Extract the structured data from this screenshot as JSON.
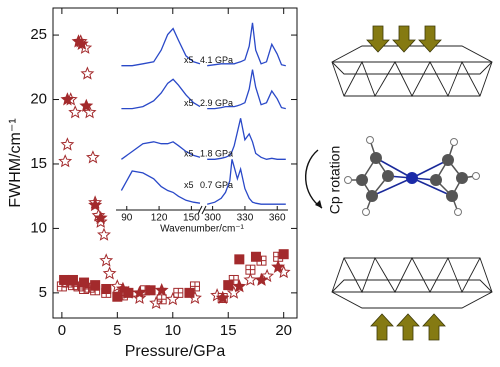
{
  "chart_data": [
    {
      "type": "scatter",
      "xlabel": "Pressure/GPa",
      "ylabel": "FWHM/cm⁻¹",
      "xlim": [
        -0.8,
        21.2
      ],
      "xticks": [
        0,
        5,
        10,
        15,
        20
      ],
      "ylim": [
        3.05,
        27.1
      ],
      "yticks": [
        5,
        10,
        15,
        20,
        25
      ],
      "series": [
        {
          "marker": "open-star",
          "color": "#a32a2c",
          "x": [
            0.3,
            0.5,
            0.8,
            1.2,
            1.7,
            2.1,
            2.3,
            2.5,
            2.8,
            3,
            3.3,
            3.5,
            3.8,
            4,
            4.3,
            5,
            6,
            7,
            8.5,
            10,
            12,
            14,
            15.5,
            17,
            18.5,
            20
          ],
          "values": [
            15.2,
            16.5,
            20,
            19,
            24.5,
            24,
            22,
            19,
            15.5,
            12,
            11,
            10.5,
            9.5,
            7.5,
            6.5,
            5.5,
            5,
            4.6,
            4.2,
            4.5,
            4.6,
            4.8,
            5,
            6,
            6.3,
            6.6
          ]
        },
        {
          "marker": "filled-star",
          "color": "#a32a2c",
          "x": [
            0.5,
            1.5,
            1.8,
            2.2,
            3,
            3.5,
            5.5,
            7,
            9,
            14.5,
            16,
            18,
            19.5
          ],
          "values": [
            20,
            24.5,
            24.3,
            19.5,
            11.8,
            10.8,
            5.3,
            5,
            5.2,
            4.6,
            5.5,
            6,
            7
          ]
        },
        {
          "marker": "open-crossed-square",
          "color": "#a32a2c",
          "x": [
            0,
            0.5,
            1,
            1.5,
            2,
            2.5,
            3,
            4,
            5.5,
            7.5,
            9,
            10.5,
            12,
            14.5,
            15.5,
            17,
            18,
            19.5
          ],
          "values": [
            5.5,
            5.8,
            5.6,
            5.5,
            5.3,
            5.4,
            5.2,
            5,
            4.8,
            5.2,
            4.5,
            5,
            5.5,
            4.6,
            6,
            6.8,
            7.5,
            7.8
          ]
        },
        {
          "marker": "filled-square",
          "color": "#a32a2c",
          "x": [
            0.2,
            1,
            2,
            3,
            4,
            5,
            6,
            8,
            11.5,
            15,
            16,
            17.5,
            20
          ],
          "values": [
            6,
            6,
            5.8,
            5.6,
            5.3,
            4.7,
            5,
            5.2,
            5,
            5.6,
            7.6,
            7.8,
            8
          ]
        }
      ]
    },
    {
      "type": "line",
      "xlabel": "Wavenumber/cm⁻¹",
      "annotation": "x5",
      "xlim": [
        80,
        370
      ],
      "axis_break": [
        158,
        292
      ],
      "xticks": [
        90,
        120,
        150,
        300,
        330,
        360
      ],
      "ylim": [
        0,
        10
      ],
      "x": [
        85,
        95,
        105,
        115,
        122,
        128,
        133,
        138,
        145,
        152,
        158,
        200,
        295,
        302,
        308,
        312,
        316,
        318,
        320,
        323,
        326,
        330,
        334,
        337,
        340,
        345,
        350,
        355,
        360,
        364,
        368
      ],
      "series": [
        {
          "name": "4.1 GPa",
          "color": "#2a49c8",
          "values": [
            7.4,
            7.4,
            7.5,
            7.6,
            8.2,
            9.0,
            9.3,
            8.7,
            7.9,
            7.6,
            7.5,
            null,
            7.4,
            7.45,
            7.5,
            7.5,
            7.5,
            7.5,
            7.5,
            7.55,
            7.6,
            7.7,
            8.4,
            9.6,
            8.2,
            7.5,
            7.6,
            8.5,
            8.0,
            7.45,
            7.4
          ]
        },
        {
          "name": "2.9 GPa",
          "color": "#2a49c8",
          "values": [
            5.2,
            5.2,
            5.3,
            5.6,
            6.0,
            6.5,
            6.7,
            6.4,
            5.9,
            5.5,
            5.3,
            null,
            5.2,
            5.2,
            5.25,
            5.3,
            5.3,
            5.3,
            5.3,
            5.35,
            5.4,
            5.5,
            6.2,
            7.2,
            6.3,
            5.4,
            5.5,
            6.1,
            5.7,
            5.25,
            5.2
          ]
        },
        {
          "name": "1.8 GPa",
          "color": "#2a49c8",
          "values": [
            2.6,
            3.0,
            3.4,
            3.5,
            3.4,
            3.4,
            3.5,
            3.3,
            3.0,
            2.8,
            2.7,
            null,
            2.6,
            2.6,
            2.65,
            2.7,
            2.8,
            3.0,
            3.3,
            4.0,
            4.7,
            3.6,
            3.9,
            3.5,
            2.9,
            2.7,
            2.6,
            2.65,
            2.6,
            2.6,
            2.6
          ]
        },
        {
          "name": "0.7 GPa",
          "color": "#2a49c8",
          "values": [
            1.0,
            2.0,
            1.9,
            1.6,
            1.2,
            1.0,
            0.9,
            0.7,
            0.5,
            0.4,
            0.35,
            null,
            0.3,
            0.4,
            0.6,
            0.9,
            1.5,
            2.6,
            2.2,
            1.6,
            2.1,
            1.1,
            0.6,
            0.4,
            0.35,
            0.3,
            0.3,
            0.3,
            0.3,
            0.3,
            0.3
          ]
        }
      ]
    }
  ],
  "diagram": {
    "label": "Cp rotation"
  }
}
